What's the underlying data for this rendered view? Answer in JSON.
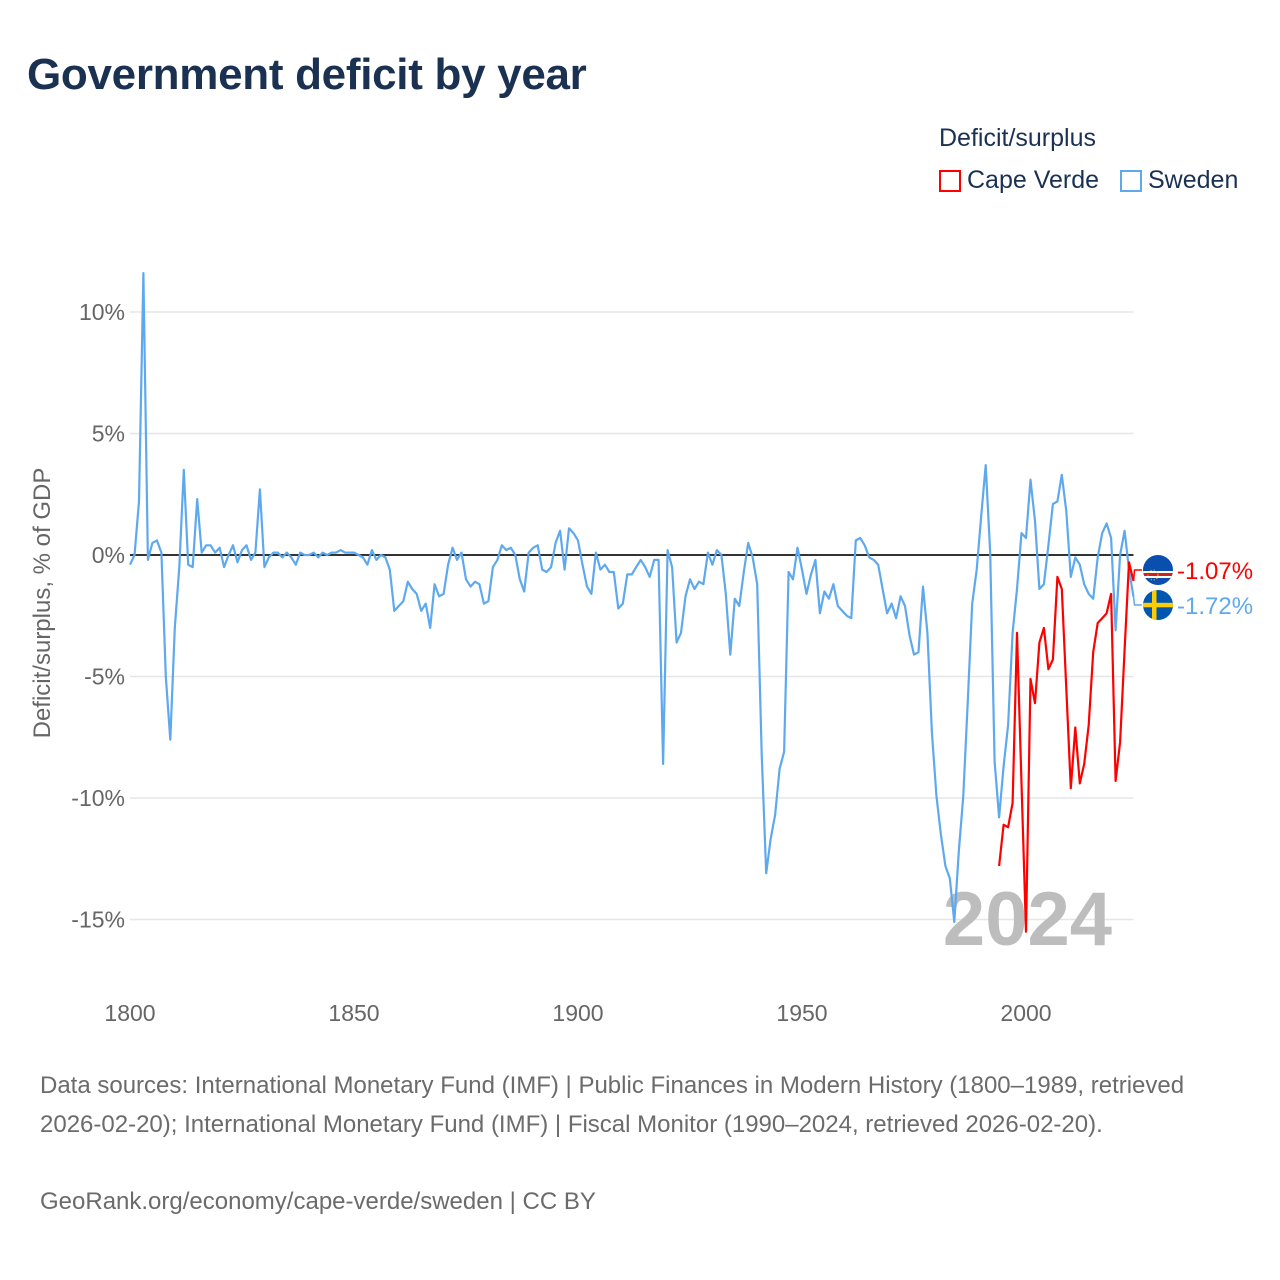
{
  "title": "Government deficit by year",
  "legend": {
    "title": "Deficit/surplus",
    "items": [
      {
        "name": "Cape Verde",
        "color": "#ff0000"
      },
      {
        "name": "Sweden",
        "color": "#5ea9ee"
      }
    ]
  },
  "chart_data": {
    "type": "line",
    "title": "Government deficit by year",
    "xlabel": "",
    "ylabel": "Deficit/surplus, % of GDP",
    "xlim": [
      1800,
      2024
    ],
    "ylim": [
      -17,
      12
    ],
    "x_ticks": [
      1800,
      1850,
      1900,
      1950,
      2000
    ],
    "x_tick_labels": [
      "1800",
      "1850",
      "1900",
      "1950",
      "2000"
    ],
    "y_ticks": [
      10,
      5,
      0,
      -5,
      -10,
      -15
    ],
    "y_tick_labels": [
      "10%",
      "5%",
      "0%",
      "-5%",
      "-10%",
      "-15%"
    ],
    "grid": true,
    "legend_position": "top-right",
    "year_label": "2024",
    "series": [
      {
        "name": "Sweden",
        "color": "#5ea9ee",
        "start_year": 1800,
        "end_label": "-1.72%",
        "flag": "sweden-flag",
        "values": [
          -0.4,
          0,
          2.2,
          11.6,
          -0.2,
          0.5,
          0.6,
          0.1,
          -5,
          -7.6,
          -3,
          -0.5,
          3.5,
          -0.4,
          -0.5,
          2.3,
          0.1,
          0.4,
          0.4,
          0.1,
          0.3,
          -0.5,
          0,
          0.4,
          -0.3,
          0.2,
          0.4,
          -0.2,
          0.1,
          2.7,
          -0.5,
          -0.1,
          0.1,
          0.1,
          -0.1,
          0.1,
          -0.1,
          -0.4,
          0.1,
          0,
          0,
          0.1,
          -0.1,
          0.1,
          0,
          0.1,
          0.1,
          0.2,
          0.1,
          0.1,
          0.1,
          0,
          -0.1,
          -0.4,
          0.2,
          -0.2,
          0,
          -0.1,
          -0.6,
          -2.3,
          -2.1,
          -1.9,
          -1.1,
          -1.4,
          -1.6,
          -2.3,
          -2,
          -3,
          -1.2,
          -1.7,
          -1.6,
          -0.4,
          0.3,
          -0.2,
          0.1,
          -1,
          -1.3,
          -1.1,
          -1.2,
          -2,
          -1.9,
          -0.5,
          -0.2,
          0.4,
          0.2,
          0.3,
          0,
          -1,
          -1.5,
          0.1,
          0.3,
          0.4,
          -0.6,
          -0.7,
          -0.5,
          0.5,
          1,
          -0.6,
          1.1,
          0.9,
          0.6,
          -0.4,
          -1.3,
          -1.6,
          0.1,
          -0.6,
          -0.4,
          -0.7,
          -0.7,
          -2.2,
          -2,
          -0.8,
          -0.8,
          -0.5,
          -0.2,
          -0.5,
          -0.9,
          -0.2,
          -0.2,
          -8.6,
          0.2,
          -0.5,
          -3.6,
          -3.2,
          -1.7,
          -1,
          -1.4,
          -1.1,
          -1.2,
          0.1,
          -0.4,
          0.2,
          0,
          -1.6,
          -4.1,
          -1.8,
          -2.1,
          -0.7,
          0.5,
          -0.1,
          -1.2,
          -8.2,
          -13.1,
          -11.7,
          -10.7,
          -8.8,
          -8.1,
          -0.7,
          -1,
          0.3,
          -0.6,
          -1.6,
          -0.8,
          -0.2,
          -2.4,
          -1.5,
          -1.8,
          -1.2,
          -2.1,
          -2.3,
          -2.5,
          -2.6,
          0.6,
          0.7,
          0.4,
          -0.1,
          -0.2,
          -0.4,
          -1.4,
          -2.4,
          -2,
          -2.6,
          -1.7,
          -2.1,
          -3.3,
          -4.1,
          -4,
          -1.3,
          -3.2,
          -7.3,
          -9.9,
          -11.5,
          -12.8,
          -13.3,
          -15.1,
          -12.2,
          -9.9,
          -6,
          -2,
          -0.6,
          1.6,
          3.7,
          0.1,
          -8.5,
          -10.8,
          -8.7,
          -7,
          -3.2,
          -1.4,
          0.9,
          0.7,
          3.1,
          1.4,
          -1.4,
          -1.2,
          0.4,
          2.1,
          2.2,
          3.3,
          1.8,
          -0.9,
          -0.1,
          -0.4,
          -1.2,
          -1.6,
          -1.8,
          -0.1,
          0.9,
          1.3,
          0.7,
          -3.1,
          0,
          1,
          -0.6,
          -1.72
        ]
      },
      {
        "name": "Cape Verde",
        "color": "#ff0000",
        "start_year": 1994,
        "end_label": "-1.07%",
        "flag": "cape-verde-flag",
        "values": [
          -12.8,
          -11.1,
          -11.2,
          -10.2,
          -3.2,
          -9.4,
          -15.5,
          -5.1,
          -6.1,
          -3.6,
          -3,
          -4.7,
          -4.3,
          -0.9,
          -1.4,
          -5.5,
          -9.6,
          -7.1,
          -9.4,
          -8.6,
          -7,
          -4,
          -2.8,
          -2.6,
          -2.4,
          -1.6,
          -9.3,
          -7.7,
          -3.9,
          -0.3,
          -1.07
        ]
      }
    ]
  },
  "footer": {
    "sources": "Data sources: International Monetary Fund (IMF) | Public Finances in Modern History (1800–1989, retrieved 2026-02-20); International Monetary Fund (IMF) | Fiscal Monitor (1990–2024, retrieved 2026-02-20).",
    "link": "GeoRank.org/economy/cape-verde/sweden | CC BY"
  }
}
